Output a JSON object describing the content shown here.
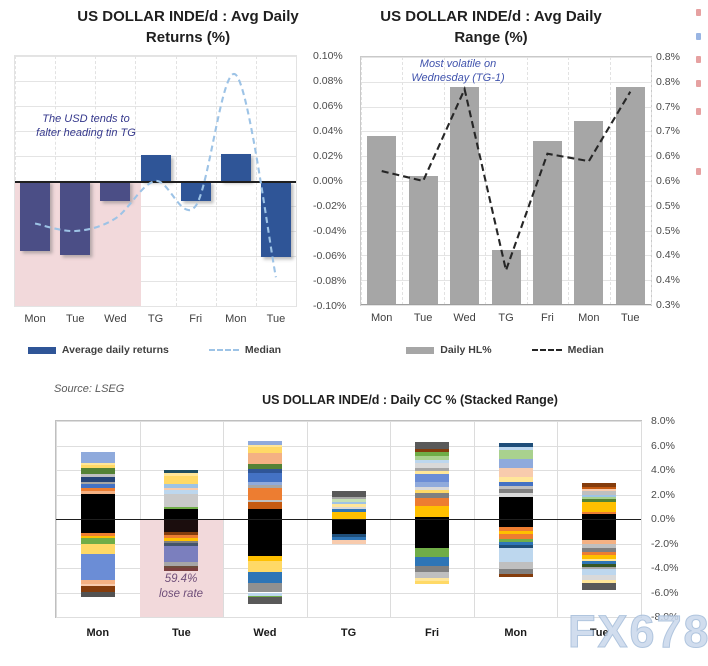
{
  "source_note": "Source: LSEG",
  "watermark": "FX678",
  "edge_ticks": [
    {
      "y": 9,
      "color": "#e08a8a"
    },
    {
      "y": 33,
      "color": "#7fa3dc"
    },
    {
      "y": 56,
      "color": "#e08a8a"
    },
    {
      "y": 80,
      "color": "#e08a8a"
    },
    {
      "y": 108,
      "color": "#e08a8a"
    },
    {
      "y": 168,
      "color": "#e08a8a"
    }
  ],
  "chart_data": [
    {
      "type": "bar",
      "title": "US DOLLAR INDE/d : Avg Daily\nReturns (%)",
      "categories": [
        "Mon",
        "Tue",
        "Wed",
        "TG",
        "Fri",
        "Mon",
        "Tue"
      ],
      "series": [
        {
          "name": "Average daily returns",
          "kind": "bar",
          "values": [
            -0.056,
            -0.059,
            -0.016,
            0.021,
            -0.016,
            0.022,
            -0.061
          ],
          "color": "#2F5597",
          "highlight_color": "#4B4E86",
          "highlight_first_n": 3
        },
        {
          "name": "Median",
          "kind": "line",
          "values": [
            -0.034,
            -0.04,
            -0.03,
            0.0,
            -0.02,
            0.085,
            -0.077
          ],
          "color": "#9DC3E6",
          "dashed": true,
          "smooth": true
        }
      ],
      "ylim": [
        -0.1,
        0.1
      ],
      "ytick_labels": [
        "0.10%",
        "0.08%",
        "0.06%",
        "0.04%",
        "0.02%",
        "0.00%",
        "-0.02%",
        "-0.04%",
        "-0.06%",
        "-0.08%",
        "-0.10%"
      ],
      "annotation": {
        "text": "The USD tends to\nfalter heading tin TG",
        "color": "#35388C"
      },
      "highlight_region": {
        "cols": [
          0,
          3
        ],
        "below_value": 0,
        "color": "#F2D9DB"
      },
      "grid": true,
      "legend_position": "bottom",
      "axis_side": "right"
    },
    {
      "type": "bar",
      "title": "US DOLLAR INDE/d : Avg Daily\nRange (%)",
      "categories": [
        "Mon",
        "Tue",
        "Wed",
        "TG",
        "Fri",
        "Mon",
        "Tue"
      ],
      "series": [
        {
          "name": "Daily HL%",
          "kind": "bar",
          "values": [
            0.64,
            0.56,
            0.74,
            0.41,
            0.63,
            0.67,
            0.74
          ],
          "color": "#A6A6A6"
        },
        {
          "name": "Median",
          "kind": "line",
          "values": [
            0.57,
            0.55,
            0.735,
            0.37,
            0.605,
            0.59,
            0.73
          ],
          "color": "#262626",
          "dashed": true,
          "smooth": false
        }
      ],
      "ylim": [
        0.3,
        0.8
      ],
      "ytick_labels": [
        "0.8%",
        "0.8%",
        "0.7%",
        "0.7%",
        "0.6%",
        "0.6%",
        "0.5%",
        "0.5%",
        "0.4%",
        "0.4%",
        "0.3%"
      ],
      "annotation": {
        "text": "Most volatile on\nWednesday (TG-1)",
        "color": "#4053AD"
      },
      "grid": true,
      "legend_position": "bottom",
      "axis_side": "right"
    },
    {
      "type": "stacked-bar",
      "title": "US DOLLAR INDE/d : Daily CC % (Stacked Range)",
      "categories": [
        "Mon",
        "Tue",
        "Wed",
        "TG",
        "Fri",
        "Mon",
        "Tue"
      ],
      "ylim": [
        -8,
        8
      ],
      "ytick_labels": [
        "8.0%",
        "6.0%",
        "4.0%",
        "2.0%",
        "0.0%",
        "-2.0%",
        "-4.0%",
        "-6.0%",
        "-8.0%"
      ],
      "annotation": {
        "text": "59.4%\nlose rate",
        "color": "#6F4E79"
      },
      "highlight_region": {
        "col": 1,
        "below_value": 0,
        "color": "#F2D9DB"
      },
      "grid": true,
      "axis_side": "right",
      "stacks": [
        {
          "day": "Mon",
          "pos": [
            [
              "#000000",
              2.05
            ],
            [
              "#F4B183",
              0.2
            ],
            [
              "#ED7D31",
              0.3
            ],
            [
              "#4472C4",
              0.28
            ],
            [
              "#A6A6A6",
              0.2
            ],
            [
              "#264478",
              0.4
            ],
            [
              "#BFBFBF",
              0.22
            ],
            [
              "#548235",
              0.55
            ],
            [
              "#FFD966",
              0.18
            ],
            [
              "#FFE699",
              0.22
            ],
            [
              "#8FAADC",
              0.85
            ]
          ],
          "neg": [
            [
              "#000000",
              1.15
            ],
            [
              "#ED7D31",
              0.22
            ],
            [
              "#FFC000",
              0.2
            ],
            [
              "#70AD47",
              0.5
            ],
            [
              "#FFD966",
              0.8
            ],
            [
              "#6B8DD6",
              2.1
            ],
            [
              "#F4B183",
              0.3
            ],
            [
              "#F8CBAD",
              0.2
            ],
            [
              "#843C0C",
              0.45
            ],
            [
              "#525252",
              0.45
            ]
          ]
        },
        {
          "day": "Tue",
          "pos": [
            [
              "#000000",
              0.8
            ],
            [
              "#70AD47",
              0.22
            ],
            [
              "#C9C9C9",
              1.05
            ],
            [
              "#BDD7EE",
              0.28
            ],
            [
              "#F8CBAD",
              0.22
            ],
            [
              "#9DC3E6",
              0.28
            ],
            [
              "#FFD966",
              0.65
            ],
            [
              "#FFE699",
              0.25
            ],
            [
              "#1F4E5F",
              0.25
            ]
          ],
          "neg": [
            [
              "#1B0D0D",
              1.1
            ],
            [
              "#843C0C",
              0.22
            ],
            [
              "#ED7D31",
              0.22
            ],
            [
              "#FFC000",
              0.22
            ],
            [
              "#808080",
              0.22
            ],
            [
              "#44546A",
              0.22
            ],
            [
              "#7B7FBE",
              1.35
            ],
            [
              "#A6A6A6",
              0.25
            ],
            [
              "#6E4B3A",
              0.22
            ],
            [
              "#7B3F3F",
              0.25
            ]
          ]
        },
        {
          "day": "Wed",
          "pos": [
            [
              "#000000",
              0.85
            ],
            [
              "#C55A11",
              0.5
            ],
            [
              "#BFBFBF",
              0.2
            ],
            [
              "#ED7D31",
              1.0
            ],
            [
              "#A6A6A6",
              0.2
            ],
            [
              "#8FAADC",
              0.25
            ],
            [
              "#4472C4",
              0.75
            ],
            [
              "#2F5597",
              0.3
            ],
            [
              "#548235",
              0.45
            ],
            [
              "#F4B183",
              0.9
            ],
            [
              "#FFD966",
              0.45
            ],
            [
              "#FFE699",
              0.2
            ],
            [
              "#8FAADC",
              0.35
            ]
          ],
          "neg": [
            [
              "#000000",
              3.0
            ],
            [
              "#FFC000",
              0.45
            ],
            [
              "#FFD966",
              0.9
            ],
            [
              "#2E75B6",
              0.85
            ],
            [
              "#909090",
              0.8
            ],
            [
              "#BDD7EE",
              0.25
            ],
            [
              "#70AD47",
              0.15
            ],
            [
              "#595959",
              0.5
            ]
          ]
        },
        {
          "day": "TG",
          "pos": [
            [
              "#FFC000",
              0.6
            ],
            [
              "#2E75B6",
              0.2
            ],
            [
              "#D9D9D9",
              0.2
            ],
            [
              "#FFE699",
              0.2
            ],
            [
              "#9DC3E6",
              0.2
            ],
            [
              "#C5E0B4",
              0.2
            ],
            [
              "#A6A6A6",
              0.2
            ],
            [
              "#595959",
              0.5
            ]
          ],
          "neg": [
            [
              "#000000",
              1.2
            ],
            [
              "#1F4E79",
              0.3
            ],
            [
              "#2E75B6",
              0.25
            ],
            [
              "#F8CBAD",
              0.25
            ]
          ]
        },
        {
          "day": "Fri",
          "pos": [
            [
              "#000000",
              0.2
            ],
            [
              "#FFC000",
              0.85
            ],
            [
              "#ED7D31",
              0.7
            ],
            [
              "#808080",
              0.4
            ],
            [
              "#FFD966",
              0.2
            ],
            [
              "#D9D9D9",
              0.25
            ],
            [
              "#8FAADC",
              0.4
            ],
            [
              "#6B8DD6",
              0.7
            ],
            [
              "#FFE699",
              0.2
            ],
            [
              "#A6A6A6",
              0.3
            ],
            [
              "#D9D9D9",
              0.35
            ],
            [
              "#BDD7EE",
              0.3
            ],
            [
              "#A9D18E",
              0.3
            ],
            [
              "#70AD47",
              0.3
            ],
            [
              "#843C0C",
              0.25
            ],
            [
              "#595959",
              0.6
            ]
          ],
          "neg": [
            [
              "#000000",
              2.4
            ],
            [
              "#70AD47",
              0.7
            ],
            [
              "#2E75B6",
              0.7
            ],
            [
              "#808080",
              0.55
            ],
            [
              "#BFBFBF",
              0.5
            ],
            [
              "#FFE699",
              0.2
            ],
            [
              "#FFD966",
              0.25
            ]
          ]
        },
        {
          "day": "Mon",
          "pos": [
            [
              "#000000",
              1.8
            ],
            [
              "#D9D9D9",
              0.3
            ],
            [
              "#808080",
              0.35
            ],
            [
              "#BFBFBF",
              0.25
            ],
            [
              "#4472C4",
              0.3
            ],
            [
              "#FFE699",
              0.4
            ],
            [
              "#F8CBAD",
              0.75
            ],
            [
              "#8FAADC",
              0.75
            ],
            [
              "#A9D18E",
              0.75
            ],
            [
              "#BDD7EE",
              0.25
            ],
            [
              "#1F4E79",
              0.3
            ]
          ],
          "neg": [
            [
              "#000000",
              0.65
            ],
            [
              "#ED7D31",
              0.3
            ],
            [
              "#FFC000",
              0.3
            ],
            [
              "#ED7D31",
              0.4
            ],
            [
              "#70AD47",
              0.2
            ],
            [
              "#2E75B6",
              0.3
            ],
            [
              "#1F4E79",
              0.2
            ],
            [
              "#BDD7EE",
              1.2
            ],
            [
              "#BFBFBF",
              0.55
            ],
            [
              "#808080",
              0.4
            ],
            [
              "#843C0C",
              0.2
            ]
          ]
        },
        {
          "day": "Tue",
          "pos": [
            [
              "#000000",
              0.4
            ],
            [
              "#ED7D31",
              0.2
            ],
            [
              "#FFC000",
              0.8
            ],
            [
              "#548235",
              0.2
            ],
            [
              "#A9D18E",
              0.2
            ],
            [
              "#9DC3E6",
              0.2
            ],
            [
              "#BFBFBF",
              0.25
            ],
            [
              "#F8CBAD",
              0.2
            ],
            [
              "#C55A11",
              0.2
            ],
            [
              "#843C0C",
              0.25
            ]
          ],
          "neg": [
            [
              "#000000",
              1.7
            ],
            [
              "#F4B183",
              0.35
            ],
            [
              "#BFBFBF",
              0.35
            ],
            [
              "#808080",
              0.3
            ],
            [
              "#ED7D31",
              0.25
            ],
            [
              "#FFC000",
              0.3
            ],
            [
              "#FFE699",
              0.2
            ],
            [
              "#2E75B6",
              0.2
            ],
            [
              "#375623",
              0.25
            ],
            [
              "#A6A6A6",
              0.2
            ],
            [
              "#BDD7EE",
              0.5
            ],
            [
              "#D9D9D9",
              0.4
            ],
            [
              "#FFE699",
              0.25
            ],
            [
              "#595959",
              0.55
            ]
          ]
        }
      ]
    }
  ]
}
